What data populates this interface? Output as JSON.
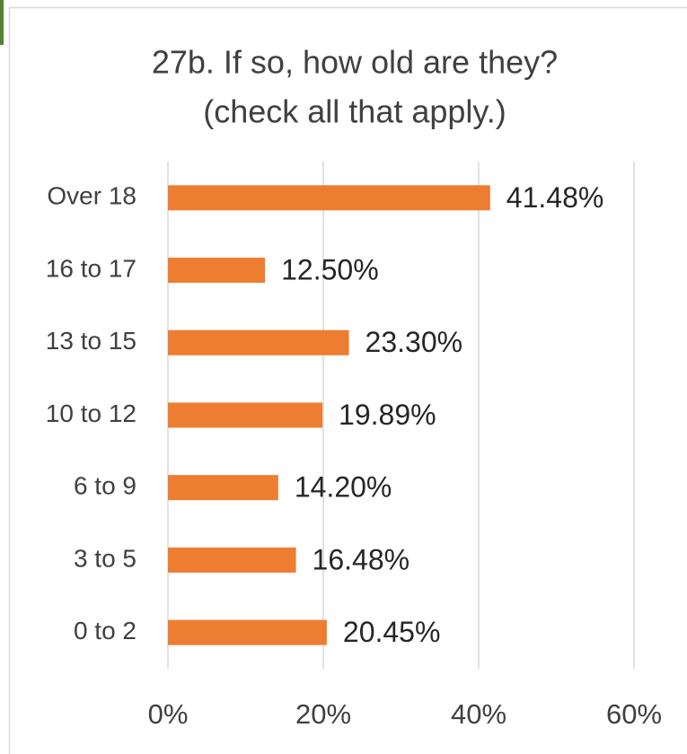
{
  "chart_data": {
    "type": "barh",
    "title": "27b. If so, how old are they?",
    "subtitle": "(check all that apply.)",
    "categories": [
      "Over 18",
      "16 to 17",
      "13 to 15",
      "10 to 12",
      "6 to 9",
      "3 to 5",
      "0 to 2"
    ],
    "values": [
      41.48,
      12.5,
      23.3,
      19.89,
      14.2,
      16.48,
      20.45
    ],
    "value_labels": [
      "41.48%",
      "12.50%",
      "23.30%",
      "19.89%",
      "14.20%",
      "16.48%",
      "20.45%"
    ],
    "color": "#ed7d31",
    "xlim": [
      0,
      60
    ],
    "xticks": [
      {
        "value": 0,
        "label": "0%"
      },
      {
        "value": 20,
        "label": "20%"
      },
      {
        "value": 40,
        "label": "40%"
      },
      {
        "value": 60,
        "label": "60%"
      }
    ],
    "grid": true
  }
}
